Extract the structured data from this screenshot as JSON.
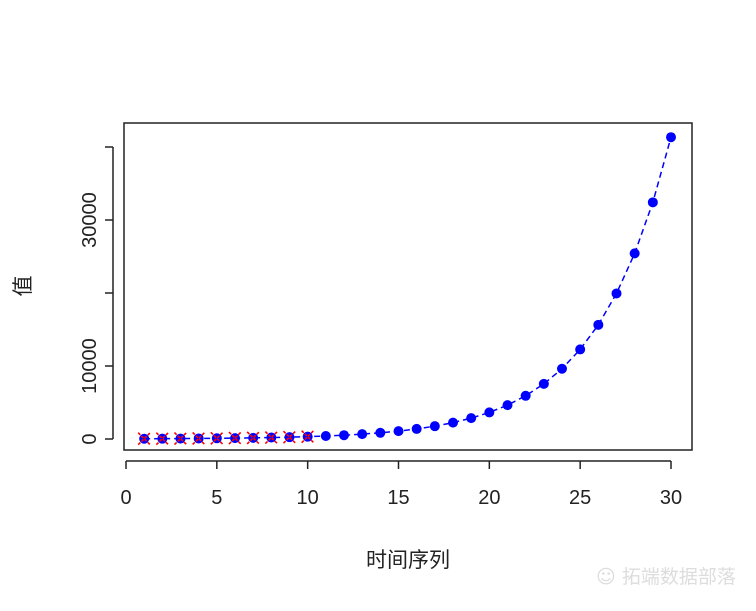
{
  "chart_data": {
    "type": "scatter",
    "title": "",
    "xlabel": "时间序列",
    "ylabel": "值",
    "xlim": [
      0,
      30
    ],
    "ylim": [
      0,
      41340
    ],
    "x_ticks": [
      0,
      5,
      10,
      15,
      20,
      25,
      30
    ],
    "y_ticks": [
      0,
      10000,
      20000,
      30000,
      40000
    ],
    "y_tick_labels": [
      "0",
      "10000",
      "",
      "30000",
      ""
    ],
    "grid": false,
    "x": [
      1,
      2,
      3,
      4,
      5,
      6,
      7,
      8,
      9,
      10,
      11,
      12,
      13,
      14,
      15,
      16,
      17,
      18,
      19,
      20,
      21,
      22,
      23,
      24,
      25,
      26,
      27,
      28,
      29,
      30
    ],
    "series": [
      {
        "values": [
          36,
          46,
          58,
          75,
          95,
          121,
          154,
          197,
          250,
          320,
          410,
          520,
          665,
          850,
          1080,
          1380,
          1760,
          2240,
          2860,
          3640,
          4640,
          5920,
          7550,
          9620,
          12270,
          15640,
          19940,
          25430,
          32420,
          41340
        ],
        "color": "#0000ff",
        "marker": "filled-circle",
        "line": "dashed"
      },
      {
        "x": [
          1,
          2,
          3,
          4,
          5,
          6,
          7,
          8,
          9,
          10
        ],
        "values": [
          36,
          46,
          58,
          75,
          95,
          121,
          154,
          197,
          250,
          320
        ],
        "color": "#ff0000",
        "marker": "x"
      }
    ]
  },
  "watermark": "拓端数据部落"
}
